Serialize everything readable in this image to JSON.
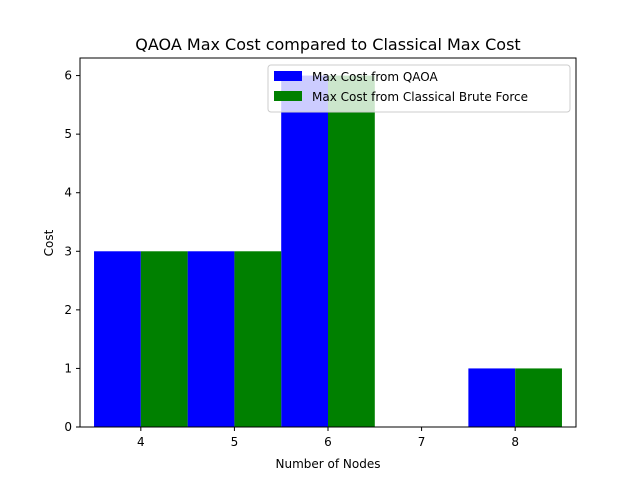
{
  "chart_data": {
    "type": "bar",
    "title": "QAOA Max Cost compared to Classical Max Cost",
    "xlabel": "Number of Nodes",
    "ylabel": "Cost",
    "x_ticks": [
      4,
      5,
      6,
      7,
      8
    ],
    "y_ticks": [
      0,
      1,
      2,
      3,
      4,
      5,
      6
    ],
    "xlim": [
      3.35,
      8.65
    ],
    "ylim": [
      0,
      6.3
    ],
    "grid": false,
    "legend_position": "top-right",
    "series": [
      {
        "name": "Max Cost from QAOA",
        "color": "#0000ff",
        "points": [
          {
            "x": 4,
            "y": 3
          },
          {
            "x": 5,
            "y": 3
          },
          {
            "x": 6,
            "y": 6
          },
          {
            "x": 8,
            "y": 1
          }
        ]
      },
      {
        "name": "Max Cost from Classical Brute Force",
        "color": "#008000",
        "points": [
          {
            "x": 4,
            "y": 3
          },
          {
            "x": 5,
            "y": 3
          },
          {
            "x": 6,
            "y": 6
          },
          {
            "x": 8,
            "y": 1
          }
        ]
      }
    ]
  }
}
